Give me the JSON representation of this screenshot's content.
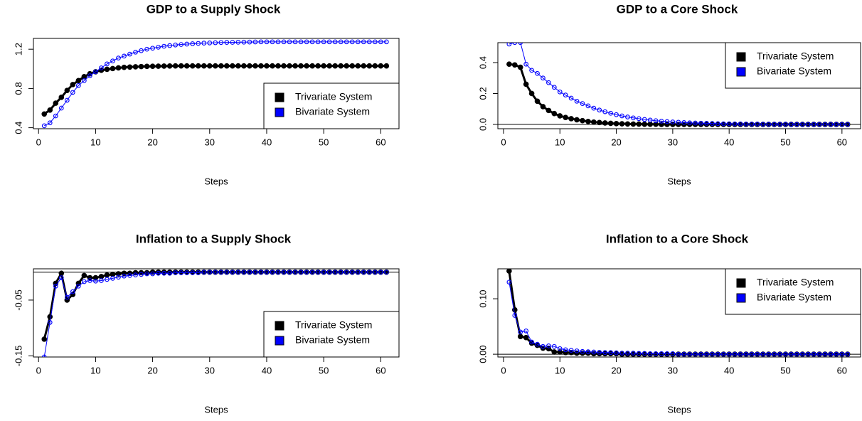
{
  "chart_data": [
    {
      "type": "line",
      "title": "GDP to a Supply Shock",
      "xlabel": "Steps",
      "x": [
        1,
        2,
        3,
        4,
        5,
        6,
        7,
        8,
        9,
        10,
        11,
        12,
        13,
        14,
        15,
        16,
        17,
        18,
        19,
        20,
        21,
        22,
        23,
        24,
        25,
        26,
        27,
        28,
        29,
        30,
        31,
        32,
        33,
        34,
        35,
        36,
        37,
        38,
        39,
        40,
        41,
        42,
        43,
        44,
        45,
        46,
        47,
        48,
        49,
        50,
        51,
        52,
        53,
        54,
        55,
        56,
        57,
        58,
        59,
        60,
        61
      ],
      "xlim": [
        -0.9,
        63.2
      ],
      "xticks": [
        0,
        10,
        20,
        30,
        40,
        50,
        60
      ],
      "ylim": [
        0.39,
        1.31
      ],
      "yticks": [
        0.4,
        0.8,
        1.2
      ],
      "legend": "bottomright",
      "series": [
        {
          "name": "Trivariate System",
          "color": "#000000",
          "values": [
            0.54,
            0.58,
            0.65,
            0.71,
            0.78,
            0.84,
            0.88,
            0.92,
            0.95,
            0.97,
            0.985,
            0.995,
            1.003,
            1.01,
            1.015,
            1.018,
            1.021,
            1.023,
            1.025,
            1.026,
            1.027,
            1.028,
            1.029,
            1.03,
            1.03,
            1.03,
            1.03,
            1.03,
            1.03,
            1.03,
            1.03,
            1.03,
            1.03,
            1.03,
            1.03,
            1.03,
            1.03,
            1.03,
            1.03,
            1.03,
            1.03,
            1.03,
            1.03,
            1.03,
            1.03,
            1.03,
            1.03,
            1.03,
            1.03,
            1.03,
            1.03,
            1.03,
            1.03,
            1.03,
            1.03,
            1.03,
            1.03,
            1.03,
            1.03,
            1.03,
            1.03
          ]
        },
        {
          "name": "Bivariate System",
          "color": "#0000ff",
          "values": [
            0.42,
            0.45,
            0.52,
            0.6,
            0.68,
            0.76,
            0.83,
            0.88,
            0.93,
            0.97,
            1.01,
            1.05,
            1.08,
            1.11,
            1.13,
            1.15,
            1.17,
            1.185,
            1.2,
            1.21,
            1.22,
            1.23,
            1.237,
            1.243,
            1.248,
            1.252,
            1.256,
            1.259,
            1.262,
            1.264,
            1.266,
            1.268,
            1.269,
            1.27,
            1.271,
            1.272,
            1.273,
            1.274,
            1.275,
            1.275,
            1.275,
            1.275,
            1.275,
            1.275,
            1.275,
            1.275,
            1.275,
            1.275,
            1.275,
            1.275,
            1.275,
            1.275,
            1.275,
            1.275,
            1.275,
            1.275,
            1.275,
            1.275,
            1.275,
            1.275,
            1.275
          ]
        }
      ]
    },
    {
      "type": "line",
      "title": "GDP to a Core Shock",
      "xlabel": "Steps",
      "x": [
        1,
        2,
        3,
        4,
        5,
        6,
        7,
        8,
        9,
        10,
        11,
        12,
        13,
        14,
        15,
        16,
        17,
        18,
        19,
        20,
        21,
        22,
        23,
        24,
        25,
        26,
        27,
        28,
        29,
        30,
        31,
        32,
        33,
        34,
        35,
        36,
        37,
        38,
        39,
        40,
        41,
        42,
        43,
        44,
        45,
        46,
        47,
        48,
        49,
        50,
        51,
        52,
        53,
        54,
        55,
        56,
        57,
        58,
        59,
        60,
        61
      ],
      "xlim": [
        -1.0,
        63.3
      ],
      "xticks": [
        0,
        10,
        20,
        30,
        40,
        50,
        60
      ],
      "ylim": [
        -0.028,
        0.529
      ],
      "yticks": [
        {
          "value": 0,
          "label": "0.0"
        },
        0.2,
        0.4
      ],
      "hline": 0,
      "legend": "topright",
      "series": [
        {
          "name": "Trivariate System",
          "color": "#000000",
          "values": [
            0.39,
            0.385,
            0.37,
            0.26,
            0.2,
            0.15,
            0.115,
            0.09,
            0.07,
            0.055,
            0.045,
            0.037,
            0.03,
            0.024,
            0.019,
            0.015,
            0.012,
            0.009,
            0.007,
            0.005,
            0.004,
            0.003,
            0.002,
            0.002,
            0.001,
            0.001,
            0.001,
            0,
            0,
            0,
            0,
            0,
            0,
            0,
            0,
            0,
            0,
            0,
            0,
            0,
            0,
            0,
            0,
            0,
            0,
            0,
            0,
            0,
            0,
            0,
            0,
            0,
            0,
            0,
            0,
            0,
            0,
            0,
            0,
            0,
            0
          ]
        },
        {
          "name": "Bivariate System",
          "color": "#0000ff",
          "values": [
            0.52,
            0.53,
            0.53,
            0.39,
            0.35,
            0.33,
            0.3,
            0.27,
            0.24,
            0.21,
            0.19,
            0.17,
            0.15,
            0.135,
            0.12,
            0.105,
            0.093,
            0.082,
            0.072,
            0.063,
            0.055,
            0.048,
            0.042,
            0.037,
            0.032,
            0.028,
            0.024,
            0.021,
            0.018,
            0.016,
            0.014,
            0.012,
            0.01,
            0.009,
            0.008,
            0.007,
            0.006,
            0.005,
            0.004,
            0.004,
            0.003,
            0.003,
            0.002,
            0.002,
            0.002,
            0.001,
            0.001,
            0.001,
            0.001,
            0.001,
            0,
            0,
            0,
            0,
            0,
            0,
            0,
            0,
            0,
            0,
            0
          ]
        }
      ]
    },
    {
      "type": "line",
      "title": "Inflation to a Supply Shock",
      "xlabel": "Steps",
      "x": [
        1,
        2,
        3,
        4,
        5,
        6,
        7,
        8,
        9,
        10,
        11,
        12,
        13,
        14,
        15,
        16,
        17,
        18,
        19,
        20,
        21,
        22,
        23,
        24,
        25,
        26,
        27,
        28,
        29,
        30,
        31,
        32,
        33,
        34,
        35,
        36,
        37,
        38,
        39,
        40,
        41,
        42,
        43,
        44,
        45,
        46,
        47,
        48,
        49,
        50,
        51,
        52,
        53,
        54,
        55,
        56,
        57,
        58,
        59,
        60,
        61
      ],
      "xlim": [
        -0.9,
        63.2
      ],
      "xticks": [
        0,
        10,
        20,
        30,
        40,
        50,
        60
      ],
      "ylim": [
        -0.152,
        0.006
      ],
      "yticks": [
        -0.15,
        -0.05
      ],
      "hline": 0,
      "legend": "bottomright",
      "series": [
        {
          "name": "Trivariate System",
          "color": "#000000",
          "values": [
            -0.12,
            -0.08,
            -0.02,
            -0.002,
            -0.05,
            -0.04,
            -0.02,
            -0.006,
            -0.01,
            -0.01,
            -0.008,
            -0.005,
            -0.004,
            -0.003,
            -0.002,
            -0.002,
            -0.001,
            -0.001,
            -0.001,
            0,
            0,
            0,
            0,
            0,
            0,
            0,
            0,
            0,
            0,
            0,
            0,
            0,
            0,
            0,
            0,
            0,
            0,
            0,
            0,
            0,
            0,
            0,
            0,
            0,
            0,
            0,
            0,
            0,
            0,
            0,
            0,
            0,
            0,
            0,
            0,
            0,
            0,
            0,
            0,
            0,
            0
          ]
        },
        {
          "name": "Bivariate System",
          "color": "#0000ff",
          "values": [
            -0.152,
            -0.09,
            -0.025,
            -0.01,
            -0.045,
            -0.035,
            -0.025,
            -0.017,
            -0.015,
            -0.016,
            -0.015,
            -0.013,
            -0.011,
            -0.009,
            -0.007,
            -0.006,
            -0.005,
            -0.004,
            -0.003,
            -0.003,
            -0.002,
            -0.002,
            -0.002,
            -0.001,
            -0.001,
            -0.001,
            -0.001,
            -0.001,
            0,
            0,
            0,
            0,
            0,
            0,
            0,
            0,
            0,
            0,
            0,
            0,
            0,
            0,
            0,
            0,
            0,
            0,
            0,
            0,
            0,
            0,
            0,
            0,
            0,
            0,
            0,
            0,
            0,
            0,
            0,
            0,
            0
          ]
        }
      ]
    },
    {
      "type": "line",
      "title": "Inflation to a Core Shock",
      "xlabel": "Steps",
      "x": [
        1,
        2,
        3,
        4,
        5,
        6,
        7,
        8,
        9,
        10,
        11,
        12,
        13,
        14,
        15,
        16,
        17,
        18,
        19,
        20,
        21,
        22,
        23,
        24,
        25,
        26,
        27,
        28,
        29,
        30,
        31,
        32,
        33,
        34,
        35,
        36,
        37,
        38,
        39,
        40,
        41,
        42,
        43,
        44,
        45,
        46,
        47,
        48,
        49,
        50,
        51,
        52,
        53,
        54,
        55,
        56,
        57,
        58,
        59,
        60,
        61
      ],
      "xlim": [
        -1.0,
        63.3
      ],
      "xticks": [
        0,
        10,
        20,
        30,
        40,
        50,
        60
      ],
      "ylim": [
        -0.005,
        0.154
      ],
      "yticks": [
        {
          "value": 0,
          "label": "0.00"
        },
        {
          "value": 0.1,
          "label": "0.10"
        }
      ],
      "hline": 0,
      "legend": "topright",
      "series": [
        {
          "name": "Trivariate System",
          "color": "#000000",
          "values": [
            0.15,
            0.08,
            0.032,
            0.03,
            0.02,
            0.016,
            0.011,
            0.01,
            0.004,
            0.004,
            0.003,
            0.003,
            0.002,
            0.002,
            0.002,
            0.001,
            0.001,
            0.001,
            0.001,
            0.001,
            0,
            0,
            0,
            0,
            0,
            0,
            0,
            0,
            0,
            0,
            0,
            0,
            0,
            0,
            0,
            0,
            0,
            0,
            0,
            0,
            0,
            0,
            0,
            0,
            0,
            0,
            0,
            0,
            0,
            0,
            0,
            0,
            0,
            0,
            0,
            0,
            0,
            0,
            0,
            0,
            0
          ]
        },
        {
          "name": "Bivariate System",
          "color": "#0000ff",
          "values": [
            0.13,
            0.07,
            0.04,
            0.042,
            0.022,
            0.018,
            0.014,
            0.015,
            0.014,
            0.01,
            0.008,
            0.007,
            0.006,
            0.005,
            0.0045,
            0.004,
            0.0035,
            0.003,
            0.003,
            0.0025,
            0.002,
            0.002,
            0.002,
            0.0015,
            0.0015,
            0.001,
            0.001,
            0.001,
            0.001,
            0.001,
            0,
            0,
            0,
            0,
            0,
            0,
            0,
            0,
            0,
            0,
            0,
            0,
            0,
            0,
            0,
            0,
            0,
            0,
            0,
            0,
            0,
            0,
            0,
            0,
            0,
            0,
            0,
            0,
            0,
            0,
            0
          ]
        }
      ]
    }
  ]
}
